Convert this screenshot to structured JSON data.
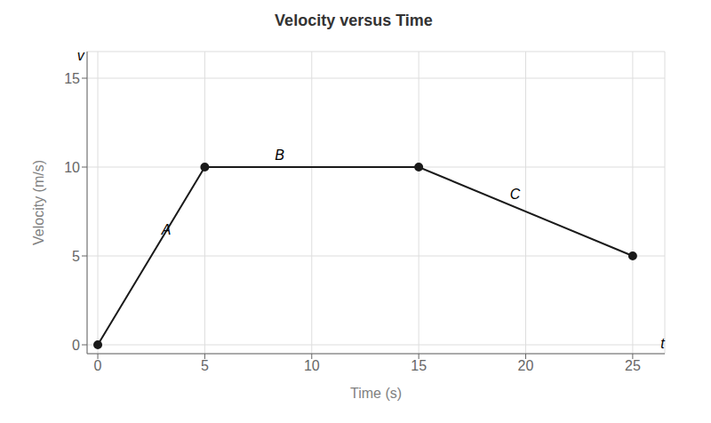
{
  "chart_data": {
    "type": "line",
    "title": "Velocity versus Time",
    "x_label": "Time (s)",
    "y_label": "Velocity (m/s)",
    "x": [
      0,
      5,
      15,
      25
    ],
    "values": [
      0,
      10,
      10,
      5
    ],
    "xlim": [
      -0.5,
      26.5
    ],
    "ylim": [
      -0.5,
      16.5
    ],
    "xticks": [
      0,
      5,
      10,
      15,
      20,
      25
    ],
    "yticks": [
      0,
      5,
      10,
      15
    ],
    "color": "#1a1a1a",
    "marker": "circle",
    "grid": true,
    "annotations": [
      {
        "text": "A",
        "x": 3.2,
        "y": 6.5
      },
      {
        "text": "B",
        "x": 8.5,
        "y": 10.7
      },
      {
        "text": "C",
        "x": 19.5,
        "y": 8.5
      },
      {
        "text": "v",
        "x": -0.8,
        "y": 16.3
      },
      {
        "text": "t",
        "x": 26.4,
        "y": 0.1
      }
    ]
  }
}
